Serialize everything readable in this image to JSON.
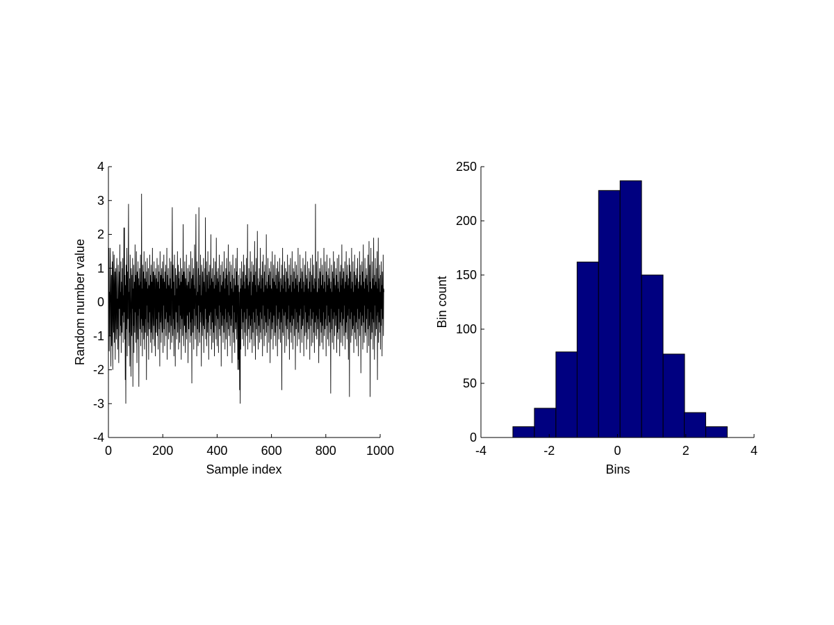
{
  "chart_data": [
    {
      "type": "line",
      "title": "",
      "xlabel": "Sample index",
      "ylabel": "Random number value",
      "xlim": [
        0,
        1000
      ],
      "ylim": [
        -4,
        4
      ],
      "xticks": [
        0,
        200,
        400,
        600,
        800,
        1000
      ],
      "xtick_labels": [
        "0",
        "200",
        "400",
        "600",
        "800",
        "1000"
      ],
      "yticks": [
        -4,
        -3,
        -2,
        -1,
        0,
        1,
        2,
        3,
        4
      ],
      "ytick_labels": [
        "-4",
        "-3",
        "-2",
        "-1",
        "0",
        "1",
        "2",
        "3",
        "4"
      ],
      "grid": false,
      "legend": "none",
      "series": [
        {
          "color": "#000000",
          "x_start": 1,
          "x_step": 1,
          "count": 1000,
          "values": [
            0.05,
            1.6,
            -1.45,
            0.3,
            -1.0,
            0.9,
            1.6,
            -0.2,
            -1.9,
            0.1,
            0.8,
            -1.3,
            0.4,
            1.2,
            -0.7,
            -2.0,
            1.5,
            0.3,
            -0.9,
            0.6,
            1.4,
            -1.2,
            -0.3,
            0.9,
            -1.7,
            0.2,
            1.0,
            -0.5,
            -1.1,
            0.7,
            1.3,
            -0.8,
            0.1,
            -1.4,
            0.5,
            1.1,
            -0.6,
            -1.8,
            0.4,
            0.9,
            -0.2,
            1.7,
            -1.0,
            0.3,
            -0.7,
            1.2,
            -1.5,
            0.6,
            0.0,
            -0.9,
            1.0,
            -0.4,
            1.3,
            -1.2,
            0.2,
            -0.6,
            2.2,
            -0.3,
            2.2,
            -1.1,
            0.8,
            -2.3,
            0.5,
            -3.0,
            1.1,
            -0.8,
            0.4,
            1.6,
            -1.6,
            -0.1,
            0.9,
            -0.5,
            1.2,
            2.9,
            -1.3,
            0.3,
            -0.9,
            0.7,
            -1.9,
            1.4,
            0.2,
            -0.4,
            -2.2,
            1.0,
            0.5,
            -1.0,
            0.8,
            -0.2,
            1.3,
            -2.5,
            0.4,
            -0.7,
            1.1,
            -1.5,
            0.6,
            0.0,
            -0.9,
            1.7,
            -0.3,
            0.8,
            -1.2,
            0.2,
            1.5,
            -0.6,
            -1.8,
            0.9,
            0.3,
            -1.1,
            1.2,
            -0.4,
            0.7,
            -2.5,
            0.5,
            -0.2,
            1.0,
            -0.8,
            0.1,
            1.4,
            -1.3,
            0.6,
            -0.5,
            3.2,
            -0.9,
            0.4,
            -1.6,
            1.1,
            0.2,
            -0.7,
            0.9,
            -1.1,
            1.5,
            -0.2,
            -1.4,
            0.7,
            0.3,
            -0.9,
            1.2,
            -0.5,
            0.6,
            -2.3,
            0.9,
            -0.1,
            1.3,
            -1.0,
            0.4,
            -0.6,
            1.0,
            -1.7,
            0.5,
            0.2,
            -0.8,
            1.4,
            -0.3,
            0.8,
            -1.2,
            0.1,
            1.1,
            -0.9,
            0.6,
            -1.5,
            0.3,
            1.6,
            -0.4,
            -1.1,
            0.9,
            0.0,
            -0.7,
            1.2,
            -1.3,
            0.5,
            0.8,
            -0.2,
            -1.6,
            1.0,
            0.3,
            -0.9,
            0.7,
            -0.5,
            1.3,
            -1.0,
            0.2,
            0.6,
            -1.4,
            1.1,
            -0.3,
            0.9,
            -0.8,
            0.4,
            -1.9,
            1.5,
            0.1,
            -0.6,
            0.8,
            -1.2,
            0.5,
            1.0,
            -0.4,
            -0.9,
            1.2,
            0.3,
            -1.5,
            0.7,
            -0.1,
            1.4,
            -0.8,
            0.6,
            -1.3,
            0.2,
            0.9,
            -0.5,
            1.1,
            -1.0,
            0.4,
            -0.3,
            1.6,
            -1.7,
            0.8,
            0.0,
            -0.6,
            1.0,
            -1.1,
            0.5,
            0.3,
            -0.9,
            1.3,
            -0.4,
            0.7,
            -1.4,
            0.1,
            1.2,
            -0.7,
            0.4,
            -1.2,
            0.9,
            2.8,
            -0.2,
            -1.0,
            1.1,
            -0.5,
            0.6,
            -1.6,
            0.3,
            1.4,
            -0.8,
            0.2,
            -1.9,
            1.0,
            0.5,
            -0.3,
            0.8,
            -1.1,
            0.4,
            -0.6,
            1.5,
            -0.9,
            0.2,
            1.1,
            -1.4,
            0.7,
            -0.1,
            0.9,
            -1.2,
            0.5,
            -0.4,
            1.3,
            -0.8,
            0.6,
            -1.7,
            0.3,
            1.0,
            -0.5,
            0.8,
            -1.0,
            0.1,
            2.3,
            -0.6,
            -1.3,
            0.9,
            0.4,
            -0.7,
            1.2,
            -0.2,
            -1.5,
            0.7,
            0.3,
            -0.9,
            1.4,
            -1.1,
            0.5,
            0.0,
            -0.4,
            1.0,
            -1.8,
            0.6,
            0.2,
            -0.8,
            1.1,
            -0.3,
            0.9,
            -1.2,
            0.4,
            -0.6,
            1.5,
            -1.0,
            0.7,
            0.1,
            -2.4,
            1.3,
            -0.5,
            0.8,
            -0.9,
            0.3,
            1.0,
            -1.4,
            0.5,
            -0.2,
            1.7,
            -0.7,
            0.4,
            -1.1,
            0.9,
            2.6,
            -0.4,
            0.2,
            -1.6,
            1.2,
            0.6,
            -0.8,
            0.3,
            -1.3,
            1.0,
            -0.1,
            2.8,
            -0.9,
            0.5,
            -1.2,
            0.8,
            -0.3,
            1.4,
            -0.6,
            0.2,
            -1.9,
            1.1,
            0.7,
            -0.4,
            -1.0,
            0.9,
            0.4,
            -0.7,
            1.3,
            -1.5,
            0.6,
            0.1,
            -0.8,
            1.0,
            -0.2,
            2.5,
            -1.1,
            0.3,
            -0.5,
            1.2,
            -1.3,
            0.8,
            0.0,
            -0.9,
            1.5,
            -0.6,
            0.4,
            -1.7,
            0.9,
            0.2,
            -0.4,
            1.1,
            -1.0,
            0.5,
            -0.3,
            2.0,
            -0.8,
            0.7,
            -1.4,
            0.3,
            1.0,
            -0.6,
            0.6,
            -1.2,
            0.1,
            1.3,
            -0.9,
            0.4,
            -1.6,
            0.8,
            -0.2,
            1.2,
            -0.7,
            0.5,
            -1.1,
            1.9,
            -0.4,
            0.9,
            -1.3,
            0.2,
            0.7,
            -0.5,
            1.0,
            -1.5,
            0.6,
            -0.1,
            1.4,
            -0.8,
            0.3,
            -1.0,
            0.8,
            -0.3,
            1.1,
            -1.9,
            0.5,
            0.2,
            -0.7,
            1.2,
            -0.4,
            0.6,
            -1.2,
            0.9,
            0.0,
            -0.9,
            1.5,
            -0.5,
            0.4,
            -1.4,
            0.7,
            -0.2,
            1.0,
            -1.1,
            0.3,
            1.3,
            -0.6,
            0.8,
            -1.6,
            0.5,
            -0.3,
            1.7,
            -0.8,
            0.2,
            -1.0,
            0.9,
            -0.4,
            1.2,
            -1.3,
            0.6,
            0.1,
            -0.7,
            1.1,
            -0.5,
            0.4,
            -1.8,
            0.8,
            -0.1,
            1.4,
            -0.9,
            0.3,
            -1.2,
            0.7,
            -0.3,
            1.0,
            -1.5,
            0.5,
            0.2,
            -0.8,
            1.3,
            -0.6,
            0.9,
            -1.1,
            0.1,
            1.6,
            -0.4,
            -2.0,
            0.5,
            -1.7,
            0.8,
            -2.0,
            0.3,
            -0.9,
            -2.6,
            1.0,
            -3.0,
            0.4,
            -1.4,
            0.7,
            -0.2,
            1.2,
            -0.8,
            0.5,
            -1.1,
            0.9,
            0.0,
            -0.6,
            1.4,
            -1.3,
            0.6,
            -0.3,
            1.1,
            -0.9,
            0.4,
            -1.6,
            0.8,
            0.2,
            -0.5,
            1.3,
            -1.0,
            0.7,
            -0.2,
            2.3,
            -1.4,
            0.5,
            0.1,
            -0.8,
            1.0,
            -0.4,
            0.6,
            -1.2,
            0.3,
            1.5,
            -0.7,
            0.9,
            -1.1,
            0.2,
            -0.5,
            1.2,
            -1.5,
            0.6,
            0.0,
            -0.9,
            1.1,
            -0.3,
            0.8,
            -1.3,
            0.4,
            1.8,
            -0.6,
            0.5,
            -1.7,
            0.9,
            -0.2,
            1.3,
            -0.8,
            0.3,
            -1.0,
            2.1,
            -0.4,
            0.7,
            -1.4,
            0.5,
            0.1,
            -0.7,
            1.0,
            -1.2,
            0.6,
            -0.3,
            1.6,
            -0.9,
            0.4,
            -1.1,
            0.8,
            0.2,
            -0.5,
            1.2,
            -1.6,
            0.7,
            -0.1,
            1.4,
            -0.8,
            0.3,
            -1.3,
            0.9,
            -0.4,
            1.1,
            -1.0,
            0.5,
            0.2,
            -0.6,
            2.0,
            -0.9,
            0.6,
            -1.5,
            0.4,
            -0.2,
            1.3,
            -0.7,
            0.8,
            -1.2,
            0.1,
            1.0,
            -0.5,
            0.5,
            -1.8,
            0.9,
            -0.3,
            1.2,
            -1.1,
            0.4,
            0.0,
            -0.8,
            1.5,
            -0.6,
            0.7,
            -1.4,
            0.3,
            1.1,
            -0.4,
            0.6,
            -1.0,
            0.2,
            1.4,
            -0.9,
            0.5,
            -1.3,
            0.8,
            -0.1,
            1.0,
            -0.7,
            0.4,
            -1.6,
            1.2,
            0.2,
            -0.5,
            0.9,
            -1.1,
            0.6,
            -0.3,
            1.3,
            -0.8,
            0.3,
            -1.2,
            0.7,
            0.0,
            -0.6,
            1.1,
            -2.6,
            0.5,
            -0.2,
            1.6,
            -0.9,
            0.4,
            -1.0,
            0.8,
            0.1,
            -0.4,
            1.2,
            -1.5,
            0.6,
            -0.3,
            1.0,
            -0.7,
            0.3,
            -1.3,
            0.9,
            0.2,
            -0.8,
            1.4,
            -0.5,
            0.7,
            -1.1,
            0.4,
            -0.1,
            1.1,
            -1.7,
            0.5,
            0.0,
            -0.6,
            1.3,
            -0.9,
            0.8,
            -1.2,
            0.3,
            -0.4,
            1.5,
            -0.7,
            0.6,
            -1.4,
            0.2,
            1.0,
            -0.5,
            0.9,
            -1.0,
            0.4,
            -0.2,
            1.2,
            -2.0,
            0.7,
            0.1,
            -0.8,
            1.1,
            -0.3,
            0.5,
            -1.3,
            0.8,
            -0.6,
            1.6,
            -0.9,
            0.3,
            -1.1,
            0.6,
            0.0,
            -0.4,
            1.4,
            -1.5,
            0.7,
            -0.2,
            1.0,
            -0.8,
            0.4,
            -1.2,
            0.9,
            0.2,
            -0.7,
            1.3,
            -0.5,
            0.6,
            -1.6,
            0.3,
            -0.1,
            1.1,
            -1.0,
            0.5,
            -0.3,
            1.5,
            -0.9,
            0.8,
            -1.4,
            0.2,
            0.7,
            -0.6,
            1.2,
            -1.1,
            0.4,
            0.0,
            -0.8,
            1.0,
            -0.4,
            0.6,
            -1.7,
            0.9,
            -0.2,
            1.3,
            -0.7,
            0.3,
            -1.3,
            0.8,
            0.1,
            -0.5,
            1.4,
            -1.2,
            0.5,
            -0.3,
            1.1,
            -0.9,
            0.4,
            -1.5,
            0.7,
            0.2,
            -0.6,
            2.9,
            -1.0,
            0.6,
            -0.4,
            1.2,
            -1.1,
            0.3,
            0.0,
            -0.8,
            1.5,
            -0.5,
            0.7,
            -1.8,
            0.4,
            -0.2,
            1.0,
            -1.3,
            0.9,
            0.1,
            -0.6,
            1.3,
            -0.9,
            0.5,
            -1.2,
            0.2,
            1.1,
            -0.7,
            0.8,
            -1.4,
            0.4,
            -0.3,
            1.6,
            -1.0,
            0.6,
            0.0,
            -0.8,
            1.2,
            -0.5,
            0.3,
            -1.6,
            0.9,
            -0.1,
            1.4,
            -0.7,
            0.5,
            -1.1,
            0.8,
            -0.4,
            1.0,
            -1.3,
            0.2,
            0.7,
            -0.6,
            1.3,
            -0.9,
            0.4,
            -2.7,
            0.6,
            -0.2,
            1.1,
            -0.8,
            0.3,
            -1.2,
            0.9,
            0.1,
            -0.5,
            1.5,
            -1.4,
            0.7,
            -0.3,
            1.2,
            -1.0,
            0.5,
            0.0,
            -0.7,
            1.0,
            -0.4,
            0.8,
            -1.5,
            0.2,
            1.3,
            -0.9,
            0.6,
            -1.1,
            0.4,
            -0.2,
            1.4,
            -0.8,
            0.3,
            -1.6,
            0.9,
            0.2,
            -0.6,
            1.1,
            -1.2,
            0.5,
            -0.3,
            1.7,
            -0.7,
            0.7,
            -1.3,
            0.1,
            1.0,
            -0.5,
            0.9,
            -1.0,
            0.4,
            -0.1,
            1.2,
            -1.4,
            0.6,
            0.0,
            -0.9,
            1.5,
            -0.6,
            0.8,
            -1.1,
            0.3,
            1.1,
            -0.4,
            0.5,
            -1.7,
            0.7,
            -0.2,
            1.3,
            -2.8,
            1.1,
            0.2,
            -0.5,
            0.9,
            -1.2,
            0.4,
            -0.3,
            1.6,
            -1.0,
            0.6,
            0.1,
            -0.8,
            1.2,
            -0.7,
            0.3,
            -1.5,
            0.9,
            -0.4,
            1.4,
            -0.9,
            0.5,
            -1.1,
            0.8,
            0.0,
            -0.6,
            1.0,
            -1.3,
            0.7,
            -0.2,
            1.3,
            -0.8,
            0.4,
            -1.6,
            0.6,
            0.2,
            -0.5,
            1.5,
            -1.0,
            0.8,
            -0.3,
            1.1,
            -2.1,
            0.5,
            0.1,
            -0.7,
            1.2,
            -0.4,
            0.9,
            -1.4,
            0.3,
            1.7,
            -0.6,
            0.6,
            -1.2,
            0.4,
            -0.1,
            1.3,
            -0.9,
            0.7,
            -1.0,
            0.2,
            1.0,
            -0.5,
            0.8,
            -1.5,
            0.5,
            -0.2,
            1.4,
            -0.8,
            0.3,
            -1.3,
            1.8,
            0.0,
            -0.7,
            1.1,
            -2.8,
            0.6,
            -0.3,
            1.6,
            -1.1,
            0.4,
            0.2,
            -0.9,
            1.2,
            -0.5,
            0.7,
            -1.4,
            0.3,
            1.9,
            -0.6,
            0.5,
            -1.7,
            0.8,
            -0.1,
            1.3,
            -1.0,
            0.6,
            0.0,
            -0.8,
            1.0,
            -0.4,
            1.5,
            -2.3,
            0.4,
            -0.3,
            1.9,
            -1.2,
            0.7,
            0.1,
            -0.6,
            1.1,
            -0.9,
            0.3,
            -1.4,
            0.8,
            -0.2,
            1.2,
            -0.7,
            0.5,
            -1.6,
            0.9,
            0.0,
            -0.5,
            1.4,
            -1.0,
            0.4,
            0.3
          ]
        }
      ]
    },
    {
      "type": "bar",
      "subtype": "histogram",
      "title": "",
      "xlabel": "Bins",
      "ylabel": "Bin count",
      "xlim": [
        -4,
        4
      ],
      "ylim": [
        0,
        250
      ],
      "xticks": [
        -4,
        -2,
        0,
        2,
        4
      ],
      "xtick_labels": [
        "-4",
        "-2",
        "0",
        "2",
        "4"
      ],
      "yticks": [
        0,
        50,
        100,
        150,
        200,
        250
      ],
      "ytick_labels": [
        "0",
        "50",
        "100",
        "150",
        "200",
        "250"
      ],
      "grid": false,
      "legend": "none",
      "bar_color": "#000080",
      "edge_color": "#000000",
      "bin_centers": [
        -2.75,
        -2.12,
        -1.49,
        -0.87,
        -0.24,
        0.39,
        1.02,
        1.65,
        2.27,
        2.9
      ],
      "bin_width": 0.628,
      "values": [
        10,
        27,
        79,
        162,
        228,
        237,
        150,
        77,
        23,
        10
      ]
    }
  ]
}
